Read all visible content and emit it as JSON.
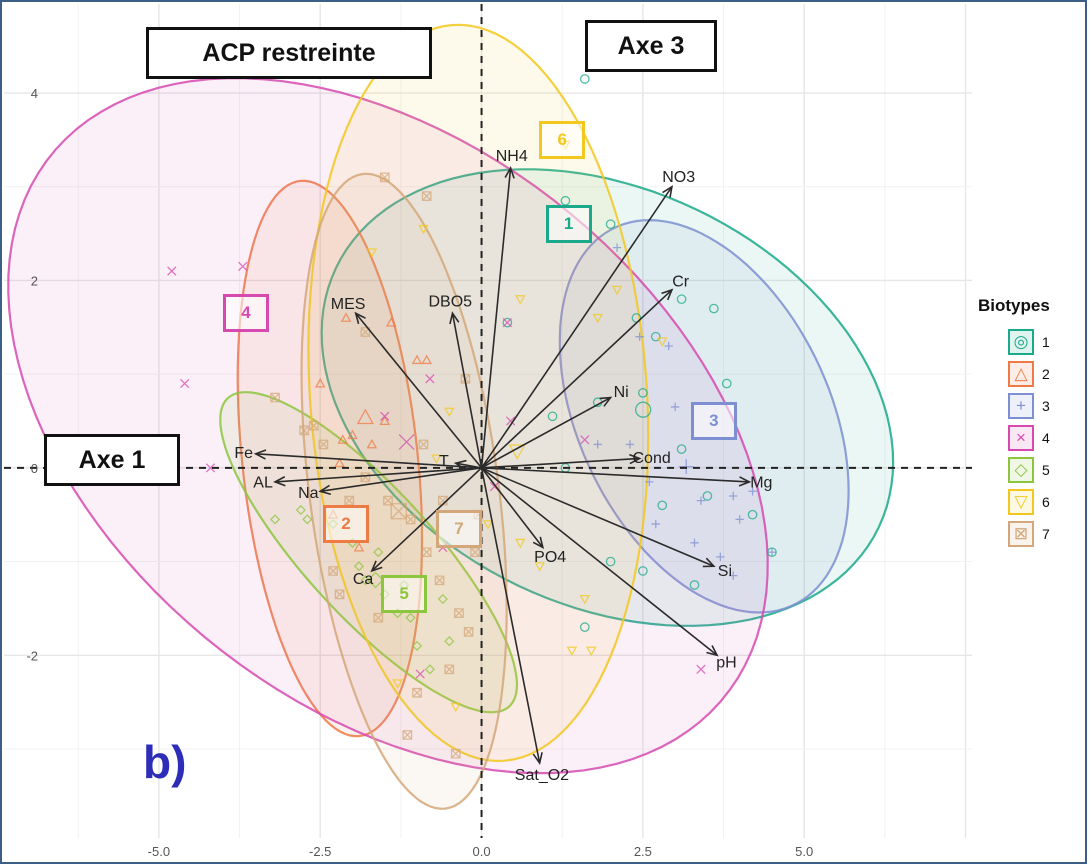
{
  "header": {
    "title": "ACP restreinte",
    "axis_x_title": "Axe 1",
    "axis_y_title": "Axe 3",
    "panel": "b)"
  },
  "chart_data": {
    "type": "scatter",
    "title": "ACP restreinte",
    "xlabel": "Axe 1",
    "ylabel": "Axe 3",
    "xlim": [
      -7.4,
      7.6
    ],
    "ylim": [
      -3.95,
      4.95
    ],
    "grid": true,
    "x_ticks": [
      -5.0,
      -2.5,
      0.0,
      2.5,
      5.0
    ],
    "x_tick_labels": [
      "-5.0",
      "-2.5",
      "0.0",
      "2.5",
      "5.0"
    ],
    "y_ticks": [
      -2,
      0,
      2,
      4
    ],
    "y_tick_labels": [
      "-2",
      "0",
      "2",
      "4"
    ],
    "legend_position": "right",
    "legend_title": "Biotypes",
    "groups": [
      {
        "name": "1",
        "color": "#1aa98a",
        "marker": "circle",
        "ellipse": {
          "cx": 1.95,
          "cy": 0.75,
          "rx": 4.5,
          "ry": 2.3,
          "rot": -12
        },
        "label_pos": [
          1.35,
          2.6
        ],
        "points": [
          [
            1.6,
            4.15
          ],
          [
            1.3,
            2.85
          ],
          [
            2.0,
            2.6
          ],
          [
            2.4,
            1.6
          ],
          [
            2.7,
            1.4
          ],
          [
            3.1,
            1.8
          ],
          [
            3.6,
            1.7
          ],
          [
            2.5,
            0.8
          ],
          [
            1.8,
            0.7
          ],
          [
            1.1,
            0.55
          ],
          [
            3.1,
            0.2
          ],
          [
            2.8,
            -0.4
          ],
          [
            3.5,
            -0.3
          ],
          [
            4.2,
            -0.5
          ],
          [
            2.0,
            -1.0
          ],
          [
            2.5,
            -1.1
          ],
          [
            3.3,
            -1.25
          ],
          [
            1.6,
            -1.7
          ],
          [
            0.4,
            1.55
          ],
          [
            4.5,
            -0.9
          ],
          [
            1.3,
            0.0
          ],
          [
            3.8,
            0.9
          ]
        ]
      },
      {
        "name": "2",
        "color": "#ee7a45",
        "marker": "triangle",
        "ellipse": {
          "cx": -2.35,
          "cy": 0.1,
          "rx": 3.0,
          "ry": 1.35,
          "rot": -80
        },
        "label_pos": [
          -2.1,
          -0.6
        ],
        "points": [
          [
            -2.1,
            1.6
          ],
          [
            -1.4,
            1.55
          ],
          [
            -2.0,
            0.35
          ],
          [
            -2.15,
            0.3
          ],
          [
            -2.5,
            0.9
          ],
          [
            -1.0,
            1.15
          ],
          [
            -0.85,
            1.15
          ],
          [
            -1.5,
            0.5
          ],
          [
            -2.2,
            0.05
          ],
          [
            -2.3,
            -0.5
          ],
          [
            -1.9,
            -0.85
          ],
          [
            -1.7,
            0.25
          ]
        ]
      },
      {
        "name": "3",
        "color": "#7d8fd0",
        "marker": "plus",
        "ellipse": {
          "cx": 3.45,
          "cy": 0.55,
          "rx": 2.55,
          "ry": 1.7,
          "rot": -40
        },
        "label_pos": [
          3.6,
          0.5
        ],
        "points": [
          [
            2.45,
            1.4
          ],
          [
            2.9,
            1.3
          ],
          [
            2.6,
            -0.15
          ],
          [
            3.4,
            -0.35
          ],
          [
            3.9,
            -0.3
          ],
          [
            4.2,
            -0.25
          ],
          [
            4.0,
            -0.55
          ],
          [
            3.7,
            -0.95
          ],
          [
            3.3,
            -0.8
          ],
          [
            3.9,
            -1.15
          ],
          [
            2.1,
            2.35
          ],
          [
            1.8,
            0.25
          ],
          [
            3.0,
            0.65
          ],
          [
            2.3,
            0.25
          ],
          [
            4.5,
            -0.9
          ],
          [
            2.7,
            -0.6
          ]
        ]
      },
      {
        "name": "4",
        "color": "#d64ab0",
        "marker": "cross",
        "ellipse": {
          "cx": -1.45,
          "cy": 0.45,
          "rx": 6.15,
          "ry": 3.25,
          "rot": -20
        },
        "label_pos": [
          -3.65,
          1.65
        ],
        "points": [
          [
            -4.8,
            2.1
          ],
          [
            -3.7,
            2.15
          ],
          [
            -4.6,
            0.9
          ],
          [
            -4.2,
            0.0
          ],
          [
            -1.5,
            0.55
          ],
          [
            -0.8,
            0.95
          ],
          [
            0.4,
            1.55
          ],
          [
            0.45,
            0.5
          ],
          [
            -0.6,
            -0.85
          ],
          [
            -0.95,
            -2.2
          ],
          [
            3.4,
            -2.15
          ],
          [
            1.6,
            0.3
          ],
          [
            0.2,
            -0.2
          ]
        ]
      },
      {
        "name": "5",
        "color": "#8cc63f",
        "marker": "diamond",
        "ellipse": {
          "cx": -1.75,
          "cy": -0.9,
          "rx": 2.75,
          "ry": 0.8,
          "rot": -35
        },
        "label_pos": [
          -1.2,
          -1.35
        ],
        "points": [
          [
            -3.2,
            -0.55
          ],
          [
            -2.8,
            -0.45
          ],
          [
            -2.7,
            -0.55
          ],
          [
            -2.3,
            -0.6
          ],
          [
            -1.9,
            -1.05
          ],
          [
            -1.8,
            -1.2
          ],
          [
            -1.5,
            -1.35
          ],
          [
            -1.3,
            -1.55
          ],
          [
            -1.1,
            -1.6
          ],
          [
            -0.6,
            -1.4
          ],
          [
            -0.5,
            -1.85
          ],
          [
            -1.6,
            -0.9
          ],
          [
            -0.8,
            -2.15
          ],
          [
            -1.2,
            -1.25
          ],
          [
            -2.0,
            -0.8
          ],
          [
            -1.0,
            -1.9
          ]
        ]
      },
      {
        "name": "6",
        "color": "#f2c81e",
        "marker": "triangle-down",
        "ellipse": {
          "cx": -0.05,
          "cy": 0.8,
          "rx": 2.6,
          "ry": 3.95,
          "rot": 8
        },
        "label_pos": [
          1.25,
          3.5
        ],
        "points": [
          [
            1.3,
            3.45
          ],
          [
            -0.9,
            2.55
          ],
          [
            -1.7,
            2.3
          ],
          [
            0.6,
            1.8
          ],
          [
            1.8,
            1.6
          ],
          [
            2.1,
            1.9
          ],
          [
            2.8,
            1.35
          ],
          [
            -0.5,
            0.6
          ],
          [
            -0.7,
            0.1
          ],
          [
            0.1,
            -0.6
          ],
          [
            0.6,
            -0.8
          ],
          [
            1.6,
            -1.4
          ],
          [
            -1.3,
            -2.3
          ],
          [
            -0.4,
            -2.55
          ],
          [
            1.4,
            -1.95
          ],
          [
            0.9,
            -1.05
          ],
          [
            1.7,
            -1.95
          ]
        ]
      },
      {
        "name": "7",
        "color": "#d3a779",
        "marker": "square-x",
        "ellipse": {
          "cx": -1.2,
          "cy": -0.25,
          "rx": 3.45,
          "ry": 1.45,
          "rot": -78
        },
        "label_pos": [
          -0.35,
          -0.65
        ],
        "points": [
          [
            -1.5,
            3.1
          ],
          [
            -0.85,
            2.9
          ],
          [
            -3.2,
            0.75
          ],
          [
            -2.45,
            0.25
          ],
          [
            -1.8,
            -0.1
          ],
          [
            -1.45,
            -0.35
          ],
          [
            -1.1,
            -0.55
          ],
          [
            -0.85,
            -0.9
          ],
          [
            -0.65,
            -1.2
          ],
          [
            -0.35,
            -1.55
          ],
          [
            -0.2,
            -1.75
          ],
          [
            -0.5,
            -2.15
          ],
          [
            -1.0,
            -2.4
          ],
          [
            -1.6,
            -1.6
          ],
          [
            -2.3,
            -1.1
          ],
          [
            -2.6,
            0.45
          ],
          [
            -0.9,
            0.25
          ],
          [
            -0.6,
            -0.35
          ],
          [
            -0.1,
            -0.9
          ],
          [
            -2.05,
            -0.35
          ],
          [
            -2.75,
            0.4
          ],
          [
            -0.25,
            0.95
          ],
          [
            -0.4,
            -3.05
          ],
          [
            -1.15,
            -2.85
          ],
          [
            -2.2,
            -1.35
          ],
          [
            -0.05,
            -0.5
          ],
          [
            -1.8,
            1.45
          ]
        ]
      }
    ],
    "vectors": [
      {
        "name": "NH4",
        "x": 0.45,
        "y": 3.2
      },
      {
        "name": "NO3",
        "x": 2.95,
        "y": 3.0
      },
      {
        "name": "Cr",
        "x": 2.95,
        "y": 1.9
      },
      {
        "name": "Ni",
        "x": 2.0,
        "y": 0.75
      },
      {
        "name": "Cond",
        "x": 2.45,
        "y": 0.1
      },
      {
        "name": "Mg",
        "x": 4.15,
        "y": -0.15
      },
      {
        "name": "Si",
        "x": 3.6,
        "y": -1.05
      },
      {
        "name": "pH",
        "x": 3.65,
        "y": -2.0
      },
      {
        "name": "PO4",
        "x": 0.95,
        "y": -0.85
      },
      {
        "name": "Sat_O2",
        "x": 0.9,
        "y": -3.15
      },
      {
        "name": "Ca",
        "x": -1.7,
        "y": -1.1
      },
      {
        "name": "Na",
        "x": -2.5,
        "y": -0.25
      },
      {
        "name": "AL",
        "x": -3.2,
        "y": -0.15
      },
      {
        "name": "Fe",
        "x": -3.5,
        "y": 0.15
      },
      {
        "name": "MES",
        "x": -1.95,
        "y": 1.65
      },
      {
        "name": "DBO5",
        "x": -0.45,
        "y": 1.65
      },
      {
        "name": "T",
        "x": -0.4,
        "y": 0.05
      }
    ]
  }
}
